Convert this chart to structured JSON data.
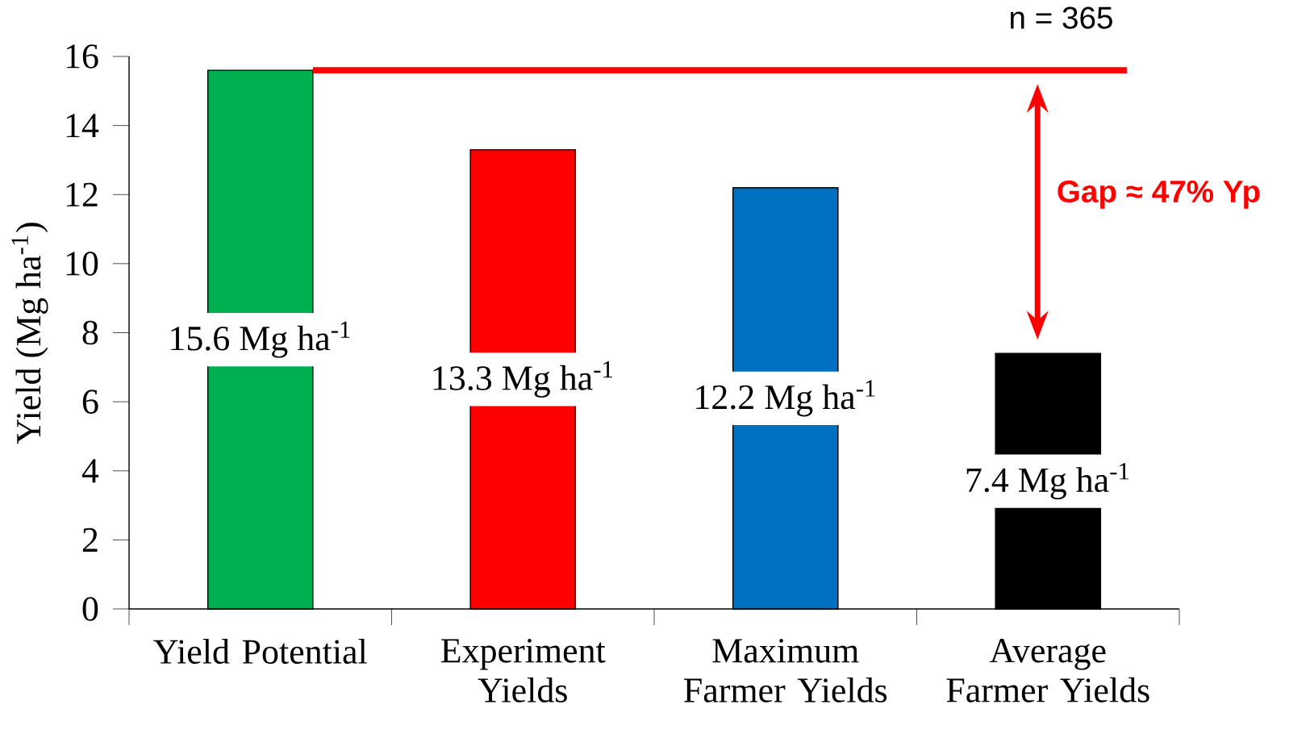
{
  "chart_data": {
    "type": "bar",
    "categories": [
      "Yield Potential",
      "Experiment Yields",
      "Maximum Farmer Yields",
      "Average Farmer Yields"
    ],
    "values": [
      15.6,
      13.3,
      12.2,
      7.4
    ],
    "colors": [
      "#00b050",
      "#ff0000",
      "#0070c0",
      "#000000"
    ],
    "value_labels": [
      "15.6 Mg ha$^{-1}$",
      "13.3 Mg ha$^{-1}$",
      "12.2 Mg ha$^{-1}$",
      "7.4 Mg ha$^{-1}$"
    ],
    "ylabel": "Yield (Mg ha$^{-1}$)",
    "ylim": [
      0,
      16
    ],
    "yticks": [
      0,
      2,
      4,
      6,
      8,
      10,
      12,
      14,
      16
    ],
    "ref_lines": [
      {
        "axis": "y",
        "value": 15.6,
        "color": "#ff0000"
      }
    ],
    "annotations": [
      "n = 365",
      "Gap ≈ 47% Yp"
    ],
    "grid": false
  }
}
